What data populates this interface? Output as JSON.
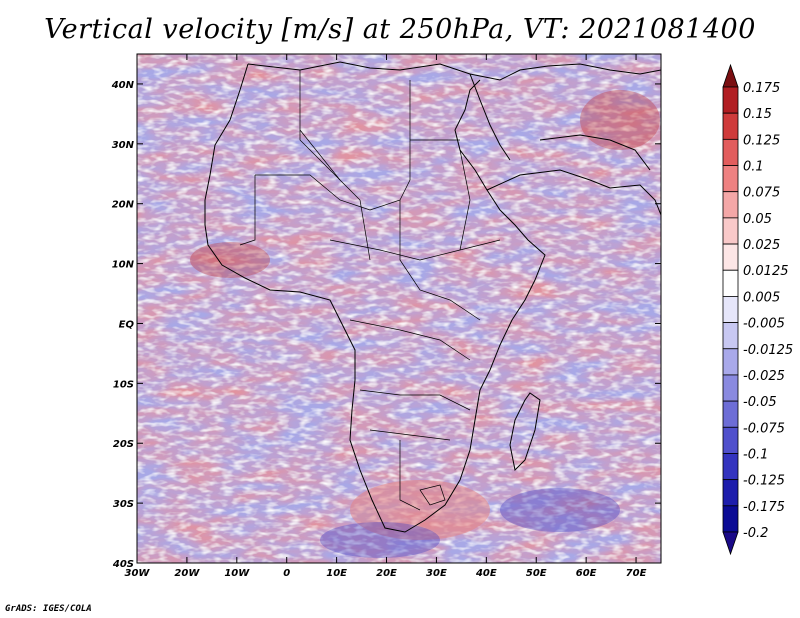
{
  "title": "Vertical velocity [m/s] at 250hPa, VT: 2021081400",
  "credit": "GrADS: IGES/COLA",
  "map": {
    "lon_range": [
      -30,
      75
    ],
    "lat_range": [
      -40,
      45
    ],
    "lon_ticks": [
      {
        "value": -30,
        "label": "30W"
      },
      {
        "value": -20,
        "label": "20W"
      },
      {
        "value": -10,
        "label": "10W"
      },
      {
        "value": 0,
        "label": "0"
      },
      {
        "value": 10,
        "label": "10E"
      },
      {
        "value": 20,
        "label": "20E"
      },
      {
        "value": 30,
        "label": "30E"
      },
      {
        "value": 40,
        "label": "40E"
      },
      {
        "value": 50,
        "label": "50E"
      },
      {
        "value": 60,
        "label": "60E"
      },
      {
        "value": 70,
        "label": "70E"
      }
    ],
    "lat_ticks": [
      {
        "value": 40,
        "label": "40N"
      },
      {
        "value": 30,
        "label": "30N"
      },
      {
        "value": 20,
        "label": "20N"
      },
      {
        "value": 10,
        "label": "10N"
      },
      {
        "value": 0,
        "label": "EQ"
      },
      {
        "value": -10,
        "label": "10S"
      },
      {
        "value": -20,
        "label": "20S"
      },
      {
        "value": -30,
        "label": "30S"
      },
      {
        "value": -40,
        "label": "40S"
      }
    ]
  },
  "colorbar": {
    "colors": [
      "#7a0f12",
      "#b11e22",
      "#cf3b3b",
      "#e25d5d",
      "#ee8181",
      "#f4a7a7",
      "#f9c9c9",
      "#fde6e6",
      "#ffffff",
      "#e6e6fa",
      "#c8c8f2",
      "#a9a9ea",
      "#8a8ae0",
      "#6d6dd6",
      "#5050cc",
      "#3434bf",
      "#1d1dac",
      "#0b0b95",
      "#1a0a88"
    ],
    "labels": [
      "0.175",
      "0.15",
      "0.125",
      "0.1",
      "0.075",
      "0.05",
      "0.025",
      "0.0125",
      "0.005",
      "-0.005",
      "-0.0125",
      "-0.025",
      "-0.05",
      "-0.075",
      "-0.1",
      "-0.125",
      "-0.175",
      "-0.2"
    ]
  }
}
